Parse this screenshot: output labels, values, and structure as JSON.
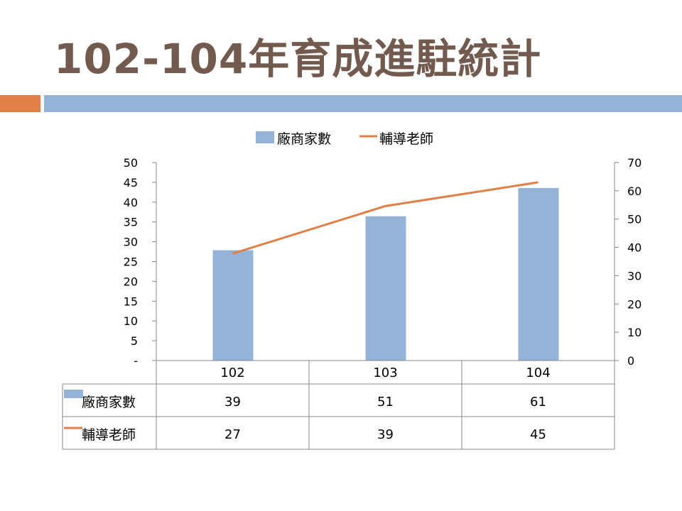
{
  "title": "102-104年育成進駐統計",
  "colors": {
    "title": "#735a4e",
    "accent_orange": "#e07f47",
    "accent_blue": "#95b3d7",
    "bar": "#95b3d7",
    "line": "#e07f47"
  },
  "chart_data": {
    "type": "bar+line",
    "categories": [
      "102",
      "103",
      "104"
    ],
    "series": [
      {
        "name": "廠商家數",
        "type": "bar",
        "axis": "right",
        "values": [
          39,
          51,
          61
        ]
      },
      {
        "name": "輔導老師",
        "type": "line",
        "axis": "left",
        "values": [
          27,
          39,
          45
        ]
      }
    ],
    "left_axis": {
      "ylim": [
        0,
        50
      ],
      "ticks": [
        "-",
        "5",
        "10",
        "15",
        "20",
        "25",
        "30",
        "35",
        "40",
        "45",
        "50"
      ]
    },
    "right_axis": {
      "ylim": [
        0,
        70
      ],
      "ticks": [
        "0",
        "10",
        "20",
        "30",
        "40",
        "50",
        "60",
        "70"
      ]
    },
    "legend": "top",
    "grid": false,
    "data_table": true
  }
}
